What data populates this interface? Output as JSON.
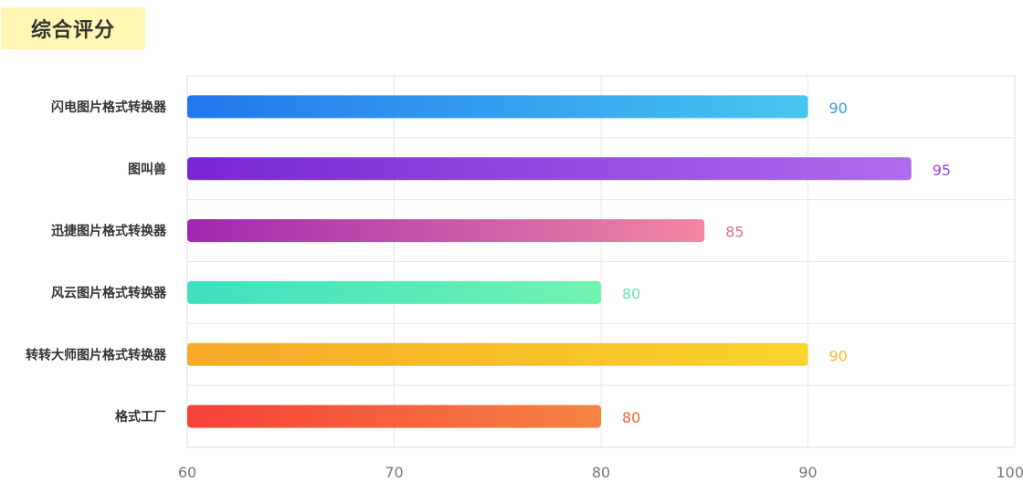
{
  "title": "综合评分",
  "chart_data": {
    "type": "bar",
    "orientation": "horizontal",
    "categories": [
      "闪电图片格式转换器",
      "图叫兽",
      "迅捷图片格式转换器",
      "风云图片格式转换器",
      "转转大师图片格式转换器",
      "格式工厂"
    ],
    "values": [
      90,
      95,
      85,
      80,
      90,
      80
    ],
    "xlim": [
      60,
      100
    ],
    "xticks": [
      60,
      70,
      80,
      90,
      100
    ],
    "grid": true,
    "bar_gradients": [
      [
        "#2277ee",
        "#47c6ef"
      ],
      [
        "#7826d4",
        "#b06bec"
      ],
      [
        "#a028b0",
        "#f387a3"
      ],
      [
        "#3de0c1",
        "#72f3b0"
      ],
      [
        "#f7a928",
        "#f9d42c"
      ],
      [
        "#f54037",
        "#f58444"
      ]
    ],
    "label_colors": [
      "#3a98e0",
      "#9a42e0",
      "#e86d99",
      "#64e0b8",
      "#f2c02c",
      "#f06232"
    ]
  }
}
